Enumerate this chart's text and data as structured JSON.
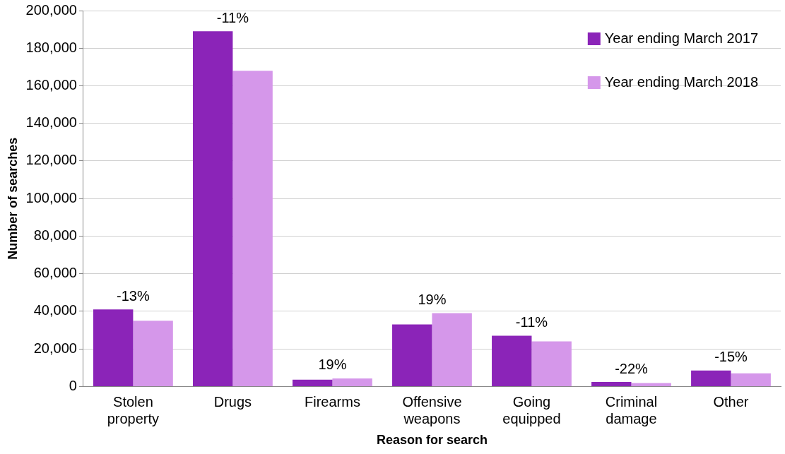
{
  "chart_data": {
    "type": "bar",
    "xlabel": "Reason for search",
    "ylabel": "Number of searches",
    "categories": [
      "Stolen property",
      "Drugs",
      "Firearms",
      "Offensive weapons",
      "Going equipped",
      "Criminal damage",
      "Other"
    ],
    "series": [
      {
        "name": "Year ending March 2017",
        "color": "#8b24b8",
        "values": [
          41000,
          189000,
          3600,
          33000,
          27000,
          2400,
          8500
        ]
      },
      {
        "name": "Year ending March 2018",
        "color": "#d597ea",
        "values": [
          35000,
          168000,
          4300,
          39000,
          24000,
          1800,
          7000
        ]
      }
    ],
    "ylim": [
      0,
      200000
    ],
    "yticks": [
      0,
      {
        "value": 20000,
        "label": "20,000"
      },
      {
        "value": 40000,
        "label": "40,000"
      },
      {
        "value": 60000,
        "label": "60,000"
      },
      {
        "value": 80000,
        "label": "80,000"
      },
      {
        "value": 100000,
        "label": "100,000"
      },
      {
        "value": 120000,
        "label": "120,000"
      },
      {
        "value": 140000,
        "label": "140,000"
      },
      {
        "value": 160000,
        "label": "160,000"
      },
      {
        "value": 180000,
        "label": "180,000"
      },
      {
        "value": 200000,
        "label": "200,000"
      }
    ],
    "grid": "y",
    "legend": "top right",
    "annotations": [
      {
        "text": "-13%",
        "x": "Stolen property",
        "y": 41000
      },
      {
        "text": "-11%",
        "x": "Drugs",
        "y": 189000
      },
      {
        "text": "19%",
        "x": "Firearms",
        "y": 4300
      },
      {
        "text": "19%",
        "x": "Offensive weapons",
        "y": 39000
      },
      {
        "text": "-11%",
        "x": "Going equipped",
        "y": 27000
      },
      {
        "text": "-22%",
        "x": "Criminal damage",
        "y": 2400
      },
      {
        "text": "-15%",
        "x": "Other",
        "y": 8500
      }
    ]
  }
}
